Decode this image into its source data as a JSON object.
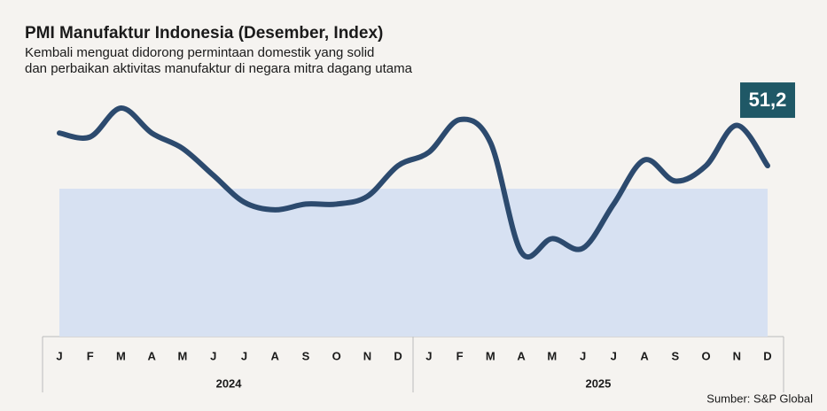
{
  "chart_data": {
    "type": "line",
    "title": "PMI Manufaktur Indonesia (Desember, Index)",
    "subtitle": [
      "Kembali menguat didorong permintaan domestik yang solid",
      "dan perbaikan aktivitas manufaktur di negara mitra dagang utama"
    ],
    "categories": [
      "J",
      "F",
      "M",
      "A",
      "M",
      "J",
      "J",
      "A",
      "S",
      "O",
      "N",
      "D",
      "J",
      "F",
      "M",
      "A",
      "M",
      "J",
      "J",
      "A",
      "S",
      "O",
      "N",
      "D"
    ],
    "groups": [
      "2024",
      "2025"
    ],
    "values": [
      52.9,
      52.7,
      54.2,
      52.9,
      52.1,
      50.7,
      49.3,
      48.9,
      49.2,
      49.2,
      49.6,
      51.2,
      51.9,
      53.6,
      52.4,
      46.7,
      47.4,
      46.9,
      49.2,
      51.5,
      50.4,
      51.2,
      53.3,
      51.2
    ],
    "value_labels": [
      null,
      null,
      null,
      null,
      null,
      null,
      null,
      null,
      null,
      null,
      null,
      null,
      null,
      null,
      null,
      null,
      null,
      null,
      null,
      null,
      null,
      null,
      null,
      "51,2"
    ],
    "color": "#2c4a6e",
    "threshold": 50,
    "ylim": [
      42.3,
      56
    ],
    "source": "Sumber: S&P Global"
  }
}
